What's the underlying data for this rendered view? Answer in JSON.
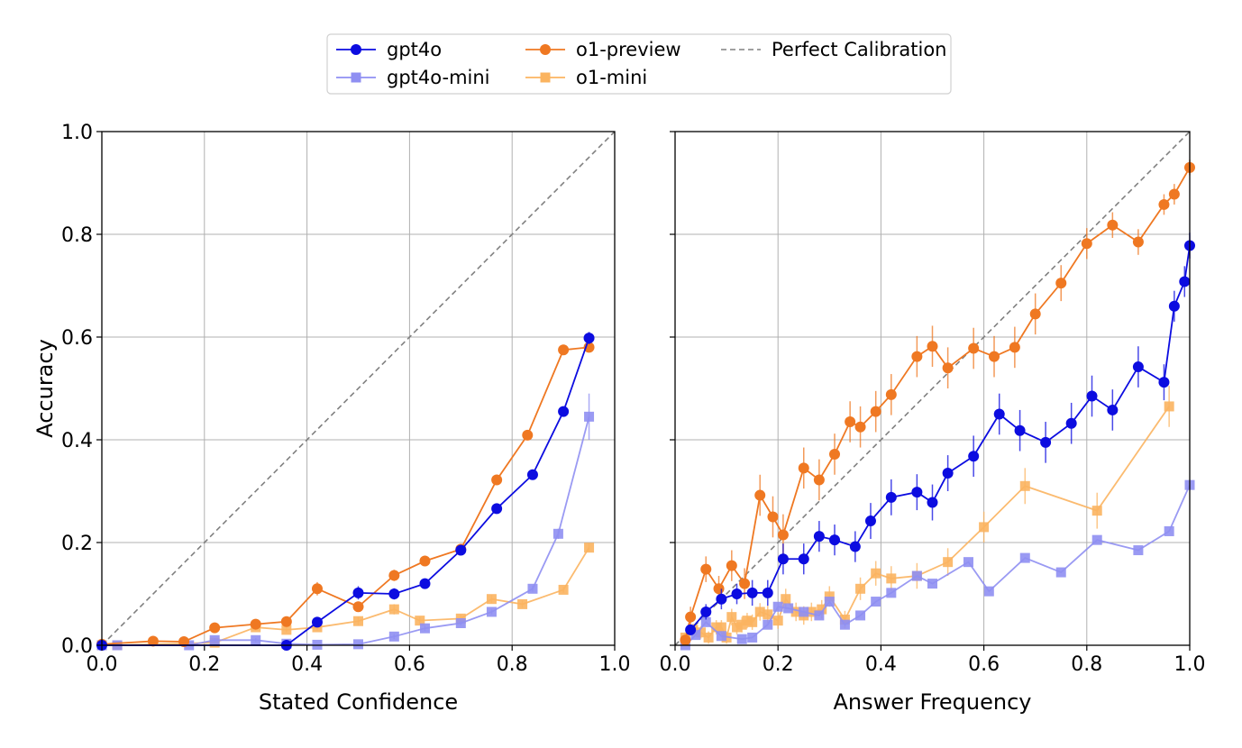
{
  "colors": {
    "gpt4o": "#0c0ce0",
    "gpt4o_mini": "#8f8ff2",
    "o1_preview": "#ef7822",
    "o1_mini": "#fbb460",
    "perfect": "#808080"
  },
  "legend": {
    "placement": "top-center",
    "entries": [
      {
        "key": "gpt4o",
        "label": "gpt4o",
        "marker": "circle"
      },
      {
        "key": "gpt4o_mini",
        "label": "gpt4o-mini",
        "marker": "square"
      },
      {
        "key": "o1_preview",
        "label": "o1-preview",
        "marker": "circle"
      },
      {
        "key": "o1_mini",
        "label": "o1-mini",
        "marker": "square"
      },
      {
        "key": "perfect",
        "label": "Perfect Calibration",
        "marker": "dashed"
      }
    ]
  },
  "chart_data": [
    {
      "type": "line",
      "xlabel": "Stated Confidence",
      "ylabel": "Accuracy",
      "xlim": [
        0,
        1
      ],
      "ylim": [
        0,
        1
      ],
      "xticks": [
        "0.0",
        "0.2",
        "0.4",
        "0.6",
        "0.8",
        "1.0"
      ],
      "yticks": [
        "0.0",
        "0.2",
        "0.4",
        "0.6",
        "0.8",
        "1.0"
      ],
      "grid": true,
      "series": [
        {
          "key": "o1_mini",
          "name": "o1-mini",
          "marker": "square",
          "x": [
            0.0,
            0.03,
            0.22,
            0.3,
            0.36,
            0.42,
            0.5,
            0.57,
            0.62,
            0.7,
            0.76,
            0.82,
            0.9,
            0.95
          ],
          "y": [
            0.0,
            0.0,
            0.005,
            0.035,
            0.03,
            0.035,
            0.047,
            0.07,
            0.048,
            0.052,
            0.09,
            0.08,
            0.108,
            0.19
          ],
          "err": [
            0.0,
            0.0,
            0.004,
            0.006,
            0.005,
            0.006,
            0.008,
            0.01,
            0.007,
            0.008,
            0.008,
            0.007,
            0.006,
            0.008
          ]
        },
        {
          "key": "gpt4o_mini",
          "name": "gpt4o-mini",
          "marker": "square",
          "x": [
            0.0,
            0.03,
            0.17,
            0.22,
            0.3,
            0.36,
            0.42,
            0.5,
            0.57,
            0.63,
            0.7,
            0.76,
            0.84,
            0.89,
            0.95
          ],
          "y": [
            0.0,
            0.0,
            0.0,
            0.01,
            0.01,
            0.003,
            0.001,
            0.002,
            0.017,
            0.033,
            0.043,
            0.065,
            0.11,
            0.217,
            0.445
          ],
          "err": [
            0.0,
            0.0,
            0.0,
            0.004,
            0.004,
            0.002,
            0.001,
            0.002,
            0.005,
            0.005,
            0.004,
            0.005,
            0.006,
            0.01,
            0.045
          ]
        },
        {
          "key": "o1_preview",
          "name": "o1-preview",
          "marker": "circle",
          "x": [
            0.0,
            0.1,
            0.16,
            0.22,
            0.3,
            0.36,
            0.42,
            0.5,
            0.57,
            0.63,
            0.7,
            0.77,
            0.83,
            0.9,
            0.95
          ],
          "y": [
            0.002,
            0.008,
            0.007,
            0.034,
            0.041,
            0.046,
            0.11,
            0.075,
            0.136,
            0.164,
            0.187,
            0.322,
            0.409,
            0.575,
            0.58
          ],
          "err": [
            0.001,
            0.003,
            0.008,
            0.008,
            0.006,
            0.007,
            0.013,
            0.009,
            0.011,
            0.007,
            0.006,
            0.006,
            0.004,
            0.004,
            0.006
          ]
        },
        {
          "key": "gpt4o",
          "name": "gpt4o",
          "marker": "circle",
          "x": [
            0.0,
            0.36,
            0.42,
            0.5,
            0.57,
            0.63,
            0.7,
            0.77,
            0.84,
            0.9,
            0.95
          ],
          "y": [
            0.0,
            0.0,
            0.045,
            0.102,
            0.1,
            0.12,
            0.185,
            0.266,
            0.332,
            0.455,
            0.598
          ],
          "err": [
            0.0,
            0.0,
            0.008,
            0.013,
            0.011,
            0.006,
            0.004,
            0.005,
            0.004,
            0.005,
            0.012
          ]
        }
      ]
    },
    {
      "type": "line",
      "xlabel": "Answer Frequency",
      "ylabel": "",
      "xlim": [
        0,
        1
      ],
      "ylim": [
        0,
        1
      ],
      "xticks": [
        "0.0",
        "0.2",
        "0.4",
        "0.6",
        "0.8",
        "1.0"
      ],
      "yticks": [],
      "grid": true,
      "series": [
        {
          "key": "o1_mini",
          "name": "o1-mini",
          "marker": "square",
          "x": [
            0.02,
            0.035,
            0.05,
            0.065,
            0.08,
            0.09,
            0.1,
            0.11,
            0.12,
            0.13,
            0.14,
            0.15,
            0.165,
            0.18,
            0.2,
            0.215,
            0.235,
            0.25,
            0.265,
            0.285,
            0.3,
            0.33,
            0.36,
            0.39,
            0.42,
            0.47,
            0.53,
            0.6,
            0.68,
            0.82,
            0.96
          ],
          "y": [
            0.015,
            0.03,
            0.025,
            0.015,
            0.035,
            0.035,
            0.015,
            0.055,
            0.035,
            0.04,
            0.048,
            0.045,
            0.065,
            0.06,
            0.048,
            0.09,
            0.065,
            0.058,
            0.065,
            0.07,
            0.095,
            0.05,
            0.11,
            0.14,
            0.13,
            0.135,
            0.162,
            0.23,
            0.31,
            0.262,
            0.465
          ],
          "err": [
            0.01,
            0.012,
            0.012,
            0.012,
            0.014,
            0.014,
            0.012,
            0.016,
            0.014,
            0.015,
            0.015,
            0.015,
            0.017,
            0.017,
            0.016,
            0.02,
            0.018,
            0.018,
            0.018,
            0.018,
            0.02,
            0.017,
            0.022,
            0.024,
            0.024,
            0.025,
            0.027,
            0.03,
            0.035,
            0.035,
            0.04
          ]
        },
        {
          "key": "gpt4o_mini",
          "name": "gpt4o-mini",
          "marker": "square",
          "x": [
            0.02,
            0.04,
            0.06,
            0.09,
            0.13,
            0.15,
            0.18,
            0.2,
            0.22,
            0.25,
            0.28,
            0.3,
            0.33,
            0.36,
            0.39,
            0.42,
            0.47,
            0.5,
            0.57,
            0.61,
            0.68,
            0.75,
            0.82,
            0.9,
            0.96,
            1.0
          ],
          "y": [
            0.0,
            0.02,
            0.045,
            0.018,
            0.012,
            0.015,
            0.04,
            0.075,
            0.072,
            0.065,
            0.058,
            0.085,
            0.04,
            0.058,
            0.085,
            0.102,
            0.135,
            0.12,
            0.162,
            0.105,
            0.17,
            0.142,
            0.205,
            0.185,
            0.222,
            0.312
          ]
        },
        {
          "key": "o1_preview",
          "name": "o1-preview",
          "marker": "circle",
          "x": [
            0.02,
            0.03,
            0.06,
            0.085,
            0.11,
            0.135,
            0.165,
            0.19,
            0.21,
            0.25,
            0.28,
            0.31,
            0.34,
            0.36,
            0.39,
            0.42,
            0.47,
            0.5,
            0.53,
            0.58,
            0.62,
            0.66,
            0.7,
            0.75,
            0.8,
            0.85,
            0.9,
            0.95,
            0.97,
            1.0
          ],
          "y": [
            0.01,
            0.055,
            0.148,
            0.11,
            0.155,
            0.12,
            0.292,
            0.25,
            0.215,
            0.345,
            0.322,
            0.372,
            0.435,
            0.425,
            0.455,
            0.488,
            0.562,
            0.582,
            0.54,
            0.578,
            0.562,
            0.58,
            0.645,
            0.705,
            0.782,
            0.818,
            0.785,
            0.858,
            0.878,
            0.93
          ],
          "err": [
            0.01,
            0.02,
            0.025,
            0.025,
            0.03,
            0.03,
            0.04,
            0.04,
            0.04,
            0.04,
            0.04,
            0.04,
            0.04,
            0.04,
            0.04,
            0.04,
            0.04,
            0.04,
            0.04,
            0.04,
            0.04,
            0.04,
            0.04,
            0.035,
            0.03,
            0.025,
            0.025,
            0.02,
            0.02,
            0.015
          ]
        },
        {
          "key": "gpt4o",
          "name": "gpt4o",
          "marker": "circle",
          "x": [
            0.03,
            0.06,
            0.09,
            0.12,
            0.15,
            0.18,
            0.21,
            0.25,
            0.28,
            0.31,
            0.35,
            0.38,
            0.42,
            0.47,
            0.5,
            0.53,
            0.58,
            0.63,
            0.67,
            0.72,
            0.77,
            0.81,
            0.85,
            0.9,
            0.95,
            0.97,
            0.99,
            1.0
          ],
          "y": [
            0.03,
            0.065,
            0.09,
            0.1,
            0.102,
            0.102,
            0.168,
            0.168,
            0.212,
            0.205,
            0.192,
            0.242,
            0.288,
            0.298,
            0.278,
            0.335,
            0.368,
            0.45,
            0.418,
            0.395,
            0.432,
            0.485,
            0.458,
            0.542,
            0.512,
            0.66,
            0.708,
            0.778
          ],
          "err": [
            0.01,
            0.015,
            0.02,
            0.02,
            0.025,
            0.025,
            0.03,
            0.03,
            0.03,
            0.03,
            0.03,
            0.035,
            0.035,
            0.035,
            0.035,
            0.035,
            0.04,
            0.04,
            0.04,
            0.04,
            0.04,
            0.04,
            0.04,
            0.04,
            0.035,
            0.03,
            0.03,
            0.025
          ]
        }
      ]
    }
  ]
}
